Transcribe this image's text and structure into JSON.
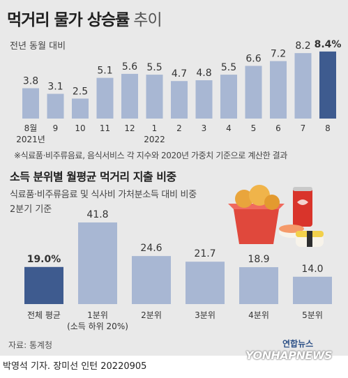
{
  "title": "먹거리 물가 상승률",
  "title_suffix": "추이",
  "subtitle": "전년 동월 대비",
  "note": "※식료품·비주류음료, 음식서비스 각 지수와 2020년 가중치 기준으로 계산한 결과",
  "title2": "소득 분위별 월평균 먹거리 지출 비중",
  "subtitle2_line1": "식료품·비주류음료 및 식사비 가처분소득 대비 비중",
  "subtitle2_line2": "2분기 기준",
  "source": "자료: 통계청",
  "credit": "박영석 기자. 장미선 인턴  20220905",
  "brand_kr": "연합뉴스",
  "brand_en": "YONHAPNEWS",
  "colors": {
    "bar": "#a8b7d3",
    "highlight": "#3e5b8f",
    "text": "#333333"
  },
  "chart_data": [
    {
      "type": "bar",
      "categories": [
        "8월",
        "9",
        "10",
        "11",
        "12",
        "1",
        "2",
        "3",
        "4",
        "5",
        "6",
        "7",
        "8"
      ],
      "sublabels": {
        "0": "2021년",
        "5": "2022"
      },
      "values": [
        3.8,
        3.1,
        2.5,
        5.1,
        5.6,
        5.5,
        4.7,
        4.8,
        5.5,
        6.6,
        7.2,
        8.2,
        8.4
      ],
      "value_labels": [
        "3.8",
        "3.1",
        "2.5",
        "5.1",
        "5.6",
        "5.5",
        "4.7",
        "4.8",
        "5.5",
        "6.6",
        "7.2",
        "8.2",
        "8.4%"
      ],
      "highlight_index": 12,
      "ylabel": "",
      "ylim": [
        0,
        9
      ]
    },
    {
      "type": "bar",
      "categories": [
        "전체 평균",
        "1분위",
        "2분위",
        "3분위",
        "4분위",
        "5분위"
      ],
      "sublabels": {
        "1": "(소득 하위 20%)"
      },
      "values": [
        19.0,
        41.8,
        24.6,
        21.7,
        18.9,
        14.0
      ],
      "value_labels": [
        "19.0%",
        "41.8",
        "24.6",
        "21.7",
        "18.9",
        "14.0"
      ],
      "highlight_index": 0,
      "ylabel": "",
      "ylim": [
        0,
        45
      ]
    }
  ]
}
